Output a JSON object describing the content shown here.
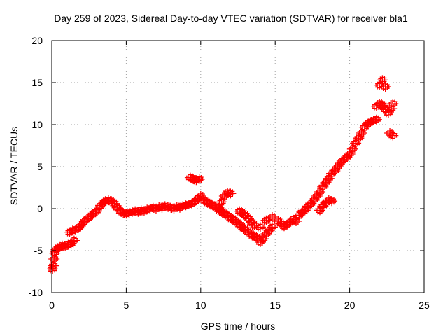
{
  "chart_data": {
    "type": "scatter",
    "title": "Day 259 of 2023, Sidereal Day-to-day VTEC variation (SDTVAR) for receiver bla1",
    "xlabel": "GPS time / hours",
    "ylabel": "SDTVAR / TECUs",
    "xlim": [
      0,
      25
    ],
    "ylim": [
      -10,
      20
    ],
    "xticks": [
      0,
      5,
      10,
      15,
      20,
      25
    ],
    "yticks": [
      -10,
      -5,
      0,
      5,
      10,
      15,
      20
    ],
    "grid": true,
    "marker": "+",
    "color": "#ff0000",
    "series": [
      {
        "name": "bla1",
        "points": [
          [
            0.05,
            -7.2
          ],
          [
            0.1,
            -6.8
          ],
          [
            0.15,
            -6.0
          ],
          [
            0.2,
            -5.3
          ],
          [
            0.3,
            -4.9
          ],
          [
            0.4,
            -4.7
          ],
          [
            0.5,
            -4.6
          ],
          [
            0.7,
            -4.4
          ],
          [
            0.9,
            -4.5
          ],
          [
            1.1,
            -4.3
          ],
          [
            1.3,
            -4.2
          ],
          [
            1.5,
            -3.8
          ],
          [
            1.2,
            -2.8
          ],
          [
            1.4,
            -2.6
          ],
          [
            1.6,
            -2.5
          ],
          [
            1.8,
            -2.3
          ],
          [
            2.0,
            -1.9
          ],
          [
            2.2,
            -1.5
          ],
          [
            2.4,
            -1.2
          ],
          [
            2.6,
            -0.9
          ],
          [
            2.8,
            -0.6
          ],
          [
            3.0,
            -0.3
          ],
          [
            3.2,
            0.2
          ],
          [
            3.4,
            0.6
          ],
          [
            3.6,
            0.9
          ],
          [
            3.8,
            1.0
          ],
          [
            4.0,
            0.9
          ],
          [
            4.2,
            0.6
          ],
          [
            4.4,
            0.1
          ],
          [
            4.6,
            -0.3
          ],
          [
            4.8,
            -0.5
          ],
          [
            5.0,
            -0.6
          ],
          [
            5.2,
            -0.5
          ],
          [
            5.4,
            -0.4
          ],
          [
            5.6,
            -0.3
          ],
          [
            5.8,
            -0.4
          ],
          [
            6.0,
            -0.2
          ],
          [
            6.2,
            -0.3
          ],
          [
            6.4,
            -0.1
          ],
          [
            6.6,
            0.0
          ],
          [
            6.8,
            0.1
          ],
          [
            7.0,
            0.0
          ],
          [
            7.2,
            0.2
          ],
          [
            7.4,
            0.1
          ],
          [
            7.6,
            0.3
          ],
          [
            7.8,
            0.2
          ],
          [
            8.0,
            0.1
          ],
          [
            8.2,
            0.0
          ],
          [
            8.4,
            0.2
          ],
          [
            8.6,
            0.1
          ],
          [
            8.8,
            0.3
          ],
          [
            9.0,
            0.4
          ],
          [
            9.2,
            0.5
          ],
          [
            9.4,
            0.6
          ],
          [
            9.6,
            0.8
          ],
          [
            9.8,
            1.2
          ],
          [
            10.0,
            1.5
          ],
          [
            9.3,
            3.7
          ],
          [
            9.5,
            3.5
          ],
          [
            9.7,
            3.4
          ],
          [
            9.9,
            3.5
          ],
          [
            10.2,
            1.0
          ],
          [
            10.4,
            0.8
          ],
          [
            10.6,
            0.6
          ],
          [
            10.8,
            0.4
          ],
          [
            11.0,
            0.2
          ],
          [
            11.2,
            0.1
          ],
          [
            11.4,
            0.8
          ],
          [
            11.6,
            1.5
          ],
          [
            11.8,
            1.9
          ],
          [
            12.0,
            1.8
          ],
          [
            11.2,
            -0.1
          ],
          [
            11.4,
            -0.4
          ],
          [
            11.6,
            -0.6
          ],
          [
            11.8,
            -0.8
          ],
          [
            12.0,
            -1.1
          ],
          [
            12.2,
            -1.3
          ],
          [
            12.4,
            -1.6
          ],
          [
            12.6,
            -1.9
          ],
          [
            12.8,
            -2.2
          ],
          [
            13.0,
            -2.5
          ],
          [
            13.2,
            -2.8
          ],
          [
            13.4,
            -3.1
          ],
          [
            13.6,
            -3.3
          ],
          [
            12.6,
            -0.3
          ],
          [
            12.8,
            -0.5
          ],
          [
            13.0,
            -0.8
          ],
          [
            13.2,
            -1.2
          ],
          [
            13.4,
            -1.6
          ],
          [
            13.6,
            -2.0
          ],
          [
            13.8,
            -3.5
          ],
          [
            14.0,
            -4.0
          ],
          [
            14.2,
            -3.6
          ],
          [
            14.4,
            -3.0
          ],
          [
            14.6,
            -2.6
          ],
          [
            14.8,
            -2.2
          ],
          [
            14.0,
            -2.2
          ],
          [
            14.4,
            -1.4
          ],
          [
            14.8,
            -1.0
          ],
          [
            15.2,
            -1.5
          ],
          [
            15.4,
            -1.8
          ],
          [
            15.6,
            -2.1
          ],
          [
            15.8,
            -1.9
          ],
          [
            16.0,
            -1.6
          ],
          [
            16.2,
            -1.3
          ],
          [
            16.4,
            -1.5
          ],
          [
            16.6,
            -0.8
          ],
          [
            16.8,
            -0.4
          ],
          [
            17.0,
            -0.2
          ],
          [
            17.2,
            0.3
          ],
          [
            17.4,
            0.6
          ],
          [
            17.6,
            1.0
          ],
          [
            17.8,
            1.5
          ],
          [
            18.0,
            2.0
          ],
          [
            18.2,
            2.6
          ],
          [
            18.4,
            3.1
          ],
          [
            18.6,
            3.6
          ],
          [
            18.8,
            4.2
          ],
          [
            19.0,
            4.5
          ],
          [
            18.0,
            -0.2
          ],
          [
            18.2,
            0.3
          ],
          [
            18.4,
            0.7
          ],
          [
            18.6,
            1.0
          ],
          [
            18.8,
            0.9
          ],
          [
            19.2,
            5.0
          ],
          [
            19.4,
            5.5
          ],
          [
            19.6,
            5.8
          ],
          [
            19.8,
            6.1
          ],
          [
            20.0,
            6.5
          ],
          [
            20.2,
            7.1
          ],
          [
            20.4,
            7.8
          ],
          [
            20.6,
            8.4
          ],
          [
            20.8,
            9.0
          ],
          [
            21.0,
            9.7
          ],
          [
            21.2,
            10.1
          ],
          [
            21.4,
            10.3
          ],
          [
            21.6,
            10.5
          ],
          [
            21.8,
            10.6
          ],
          [
            21.8,
            12.2
          ],
          [
            22.0,
            12.5
          ],
          [
            22.2,
            12.3
          ],
          [
            22.4,
            11.8
          ],
          [
            22.6,
            11.4
          ],
          [
            22.8,
            11.9
          ],
          [
            22.9,
            12.5
          ],
          [
            22.7,
            9.0
          ],
          [
            22.9,
            8.7
          ],
          [
            22.0,
            14.7
          ],
          [
            22.2,
            15.3
          ],
          [
            22.4,
            14.5
          ]
        ]
      }
    ]
  }
}
